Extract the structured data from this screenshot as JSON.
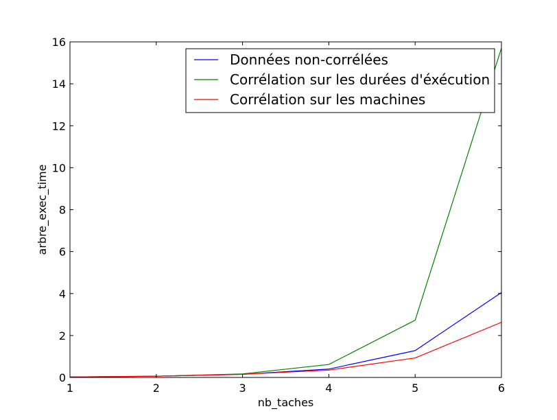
{
  "chart_data": {
    "type": "line",
    "title": "",
    "xlabel": "nb_taches",
    "ylabel": "arbre_exec_time",
    "xlim": [
      1,
      6
    ],
    "ylim": [
      0,
      16
    ],
    "xticks": [
      1,
      2,
      3,
      4,
      5,
      6
    ],
    "yticks": [
      0,
      2,
      4,
      6,
      8,
      10,
      12,
      14,
      16
    ],
    "grid": false,
    "legend_position": "top-right",
    "x": [
      1,
      2,
      3,
      4,
      5,
      6
    ],
    "series": [
      {
        "name": "Données non-corrélées",
        "color": "#0000ff",
        "values": [
          0.02,
          0.06,
          0.15,
          0.4,
          1.28,
          4.05
        ]
      },
      {
        "name": "Corrélation sur les durées d'éxécution",
        "color": "#008000",
        "values": [
          0.02,
          0.06,
          0.17,
          0.62,
          2.73,
          15.7
        ]
      },
      {
        "name": "Corrélation sur les machines",
        "color": "#ff0000",
        "values": [
          0.02,
          0.06,
          0.15,
          0.35,
          0.93,
          2.63
        ]
      }
    ]
  }
}
